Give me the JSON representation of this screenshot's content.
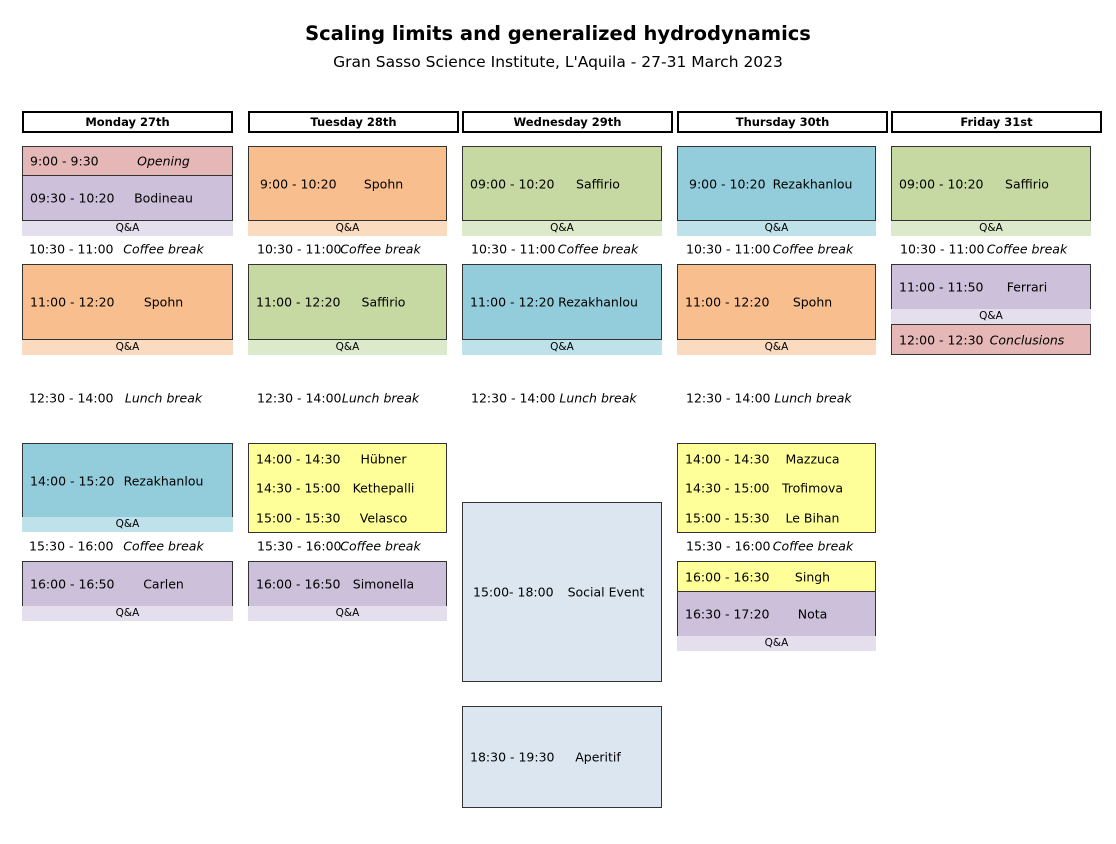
{
  "header": {
    "title": "Scaling limits and generalized hydrodynamics",
    "subtitle": "Gran Sasso Science Institute, L'Aquila - 27-31 March 2023"
  },
  "qa_label": "Q&A",
  "days": {
    "monday": {
      "label": "Monday 27th",
      "opening": {
        "time": "9:00 - 9:30",
        "speaker": "Opening"
      },
      "s1": {
        "time": "09:30 - 10:20",
        "speaker": "Bodineau"
      },
      "coffee1": {
        "time": "10:30 - 11:00",
        "label": "Coffee break"
      },
      "s2": {
        "time": "11:00 - 12:20",
        "speaker": "Spohn"
      },
      "lunch": {
        "time": "12:30 - 14:00",
        "label": "Lunch break"
      },
      "s3": {
        "time": "14:00 - 15:20",
        "speaker": "Rezakhanlou"
      },
      "coffee2": {
        "time": "15:30 - 16:00",
        "label": "Coffee break"
      },
      "s4": {
        "time": "16:00 - 16:50",
        "speaker": "Carlen"
      }
    },
    "tuesday": {
      "label": "Tuesday 28th",
      "s1": {
        "time": "9:00 - 10:20",
        "speaker": "Spohn"
      },
      "coffee1": {
        "time": "10:30 - 11:00",
        "label": "Coffee break"
      },
      "s2": {
        "time": "11:00 - 12:20",
        "speaker": "Saffirio"
      },
      "lunch": {
        "time": "12:30 - 14:00",
        "label": "Lunch break"
      },
      "short": [
        {
          "time": "14:00 - 14:30",
          "speaker": "Hübner"
        },
        {
          "time": "14:30 - 15:00",
          "speaker": "Kethepalli"
        },
        {
          "time": "15:00 - 15:30",
          "speaker": "Velasco"
        }
      ],
      "coffee2": {
        "time": "15:30 - 16:00",
        "label": "Coffee break"
      },
      "s4": {
        "time": "16:00 - 16:50",
        "speaker": "Simonella"
      }
    },
    "wednesday": {
      "label": "Wednesday 29th",
      "s1": {
        "time": "09:00 - 10:20",
        "speaker": "Saffirio"
      },
      "coffee1": {
        "time": "10:30 - 11:00",
        "label": "Coffee break"
      },
      "s2": {
        "time": "11:00 - 12:20",
        "speaker": "Rezakhanlou"
      },
      "lunch": {
        "time": "12:30 - 14:00",
        "label": "Lunch break"
      },
      "social": {
        "time": "15:00- 18:00",
        "speaker": "Social Event"
      },
      "aperitif": {
        "time": "18:30 - 19:30",
        "speaker": "Aperitif"
      }
    },
    "thursday": {
      "label": "Thursday 30th",
      "s1": {
        "time": "9:00 - 10:20",
        "speaker": "Rezakhanlou"
      },
      "coffee1": {
        "time": "10:30 - 11:00",
        "label": "Coffee break"
      },
      "s2": {
        "time": "11:00 - 12:20",
        "speaker": "Spohn"
      },
      "lunch": {
        "time": "12:30 - 14:00",
        "label": "Lunch break"
      },
      "short": [
        {
          "time": "14:00 - 14:30",
          "speaker": "Mazzuca"
        },
        {
          "time": "14:30 - 15:00",
          "speaker": "Trofimova"
        },
        {
          "time": "15:00 - 15:30",
          "speaker": "Le Bihan"
        }
      ],
      "coffee2": {
        "time": "15:30 - 16:00",
        "label": "Coffee break"
      },
      "s3": {
        "time": "16:00 - 16:30",
        "speaker": "Singh"
      },
      "s4": {
        "time": "16:30 - 17:20",
        "speaker": "Nota"
      }
    },
    "friday": {
      "label": "Friday 31st",
      "s1": {
        "time": "09:00 - 10:20",
        "speaker": "Saffirio"
      },
      "coffee1": {
        "time": "10:30 - 11:00",
        "label": "Coffee break"
      },
      "s2": {
        "time": "11:00 - 11:50",
        "speaker": "Ferrari"
      },
      "conclusions": {
        "time": "12:00 - 12:30",
        "speaker": "Conclusions"
      }
    }
  }
}
